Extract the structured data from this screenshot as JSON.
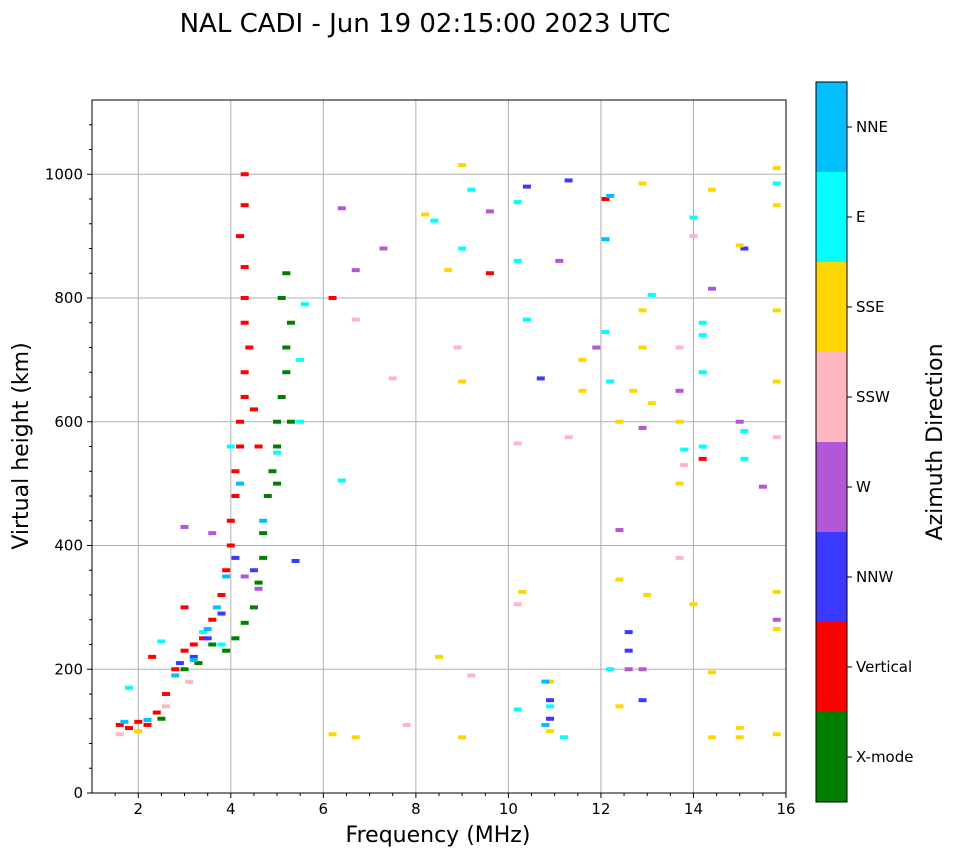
{
  "chart_data": {
    "type": "scatter",
    "title": "NAL CADI - Jun 19 02:15:00 2023 UTC",
    "xlabel": "Frequency (MHz)",
    "ylabel": "Virtual height (km)",
    "xlim": [
      1,
      16
    ],
    "ylim": [
      0,
      1120
    ],
    "grid": true,
    "x_ticks": [
      2,
      4,
      6,
      8,
      10,
      12,
      14,
      16
    ],
    "y_ticks": [
      0,
      200,
      400,
      600,
      800,
      1000
    ],
    "colorbar": {
      "label": "Azimuth Direction",
      "categories": [
        "X-mode",
        "Vertical",
        "NNW",
        "W",
        "SSW",
        "SSE",
        "E",
        "NNE"
      ],
      "colors": [
        "#008000",
        "#ff0000",
        "#3a3aff",
        "#b356d8",
        "#ffb6c1",
        "#ffd700",
        "#00ffff",
        "#00bfff"
      ]
    },
    "series": [
      {
        "name": "X-mode",
        "points": [
          [
            2.5,
            120
          ],
          [
            3.0,
            200
          ],
          [
            3.3,
            210
          ],
          [
            3.6,
            240
          ],
          [
            3.9,
            230
          ],
          [
            4.1,
            250
          ],
          [
            4.3,
            275
          ],
          [
            4.5,
            300
          ],
          [
            4.6,
            340
          ],
          [
            4.7,
            380
          ],
          [
            4.7,
            420
          ],
          [
            4.8,
            480
          ],
          [
            4.9,
            520
          ],
          [
            5.0,
            560
          ],
          [
            5.0,
            600
          ],
          [
            5.1,
            640
          ],
          [
            5.2,
            680
          ],
          [
            5.2,
            720
          ],
          [
            5.3,
            760
          ],
          [
            5.1,
            800
          ],
          [
            5.2,
            840
          ],
          [
            5.0,
            500
          ],
          [
            5.3,
            600
          ]
        ]
      },
      {
        "name": "Vertical",
        "points": [
          [
            1.6,
            110
          ],
          [
            1.8,
            105
          ],
          [
            2.0,
            115
          ],
          [
            2.2,
            110
          ],
          [
            2.4,
            130
          ],
          [
            2.6,
            160
          ],
          [
            2.8,
            200
          ],
          [
            3.0,
            230
          ],
          [
            3.2,
            240
          ],
          [
            3.4,
            250
          ],
          [
            3.6,
            280
          ],
          [
            3.8,
            320
          ],
          [
            3.9,
            360
          ],
          [
            4.0,
            400
          ],
          [
            4.0,
            440
          ],
          [
            4.1,
            480
          ],
          [
            4.1,
            520
          ],
          [
            4.2,
            560
          ],
          [
            4.2,
            600
          ],
          [
            4.3,
            640
          ],
          [
            4.3,
            680
          ],
          [
            4.4,
            720
          ],
          [
            4.3,
            760
          ],
          [
            4.3,
            800
          ],
          [
            4.3,
            850
          ],
          [
            4.2,
            900
          ],
          [
            4.3,
            950
          ],
          [
            4.3,
            1000
          ],
          [
            4.6,
            560
          ],
          [
            4.5,
            620
          ],
          [
            3.0,
            300
          ],
          [
            2.3,
            220
          ],
          [
            6.2,
            800
          ],
          [
            9.6,
            840
          ],
          [
            12.1,
            960
          ],
          [
            14.2,
            540
          ]
        ]
      },
      {
        "name": "NNW",
        "points": [
          [
            2.9,
            210
          ],
          [
            3.2,
            220
          ],
          [
            3.5,
            250
          ],
          [
            3.8,
            290
          ],
          [
            4.1,
            380
          ],
          [
            4.5,
            360
          ],
          [
            5.4,
            375
          ],
          [
            12.6,
            260
          ],
          [
            12.6,
            230
          ],
          [
            10.9,
            150
          ],
          [
            10.9,
            120
          ],
          [
            15.1,
            880
          ],
          [
            10.4,
            980
          ],
          [
            11.3,
            990
          ],
          [
            12.9,
            150
          ],
          [
            10.7,
            670
          ]
        ]
      },
      {
        "name": "W",
        "points": [
          [
            3.0,
            430
          ],
          [
            3.6,
            420
          ],
          [
            4.3,
            350
          ],
          [
            4.6,
            330
          ],
          [
            6.4,
            945
          ],
          [
            6.7,
            845
          ],
          [
            7.3,
            880
          ],
          [
            9.6,
            940
          ],
          [
            12.6,
            200
          ],
          [
            12.9,
            200
          ],
          [
            12.4,
            425
          ],
          [
            11.9,
            720
          ],
          [
            14.4,
            815
          ],
          [
            15.5,
            495
          ],
          [
            15.8,
            280
          ],
          [
            15.0,
            600
          ],
          [
            13.7,
            650
          ],
          [
            12.9,
            590
          ],
          [
            11.1,
            860
          ]
        ]
      },
      {
        "name": "SSW",
        "points": [
          [
            1.6,
            95
          ],
          [
            2.6,
            140
          ],
          [
            3.1,
            180
          ],
          [
            6.7,
            765
          ],
          [
            7.5,
            670
          ],
          [
            8.9,
            720
          ],
          [
            10.2,
            565
          ],
          [
            11.3,
            575
          ],
          [
            13.7,
            720
          ],
          [
            13.8,
            530
          ],
          [
            13.7,
            380
          ],
          [
            14.0,
            900
          ],
          [
            15.8,
            575
          ],
          [
            9.2,
            190
          ],
          [
            10.2,
            305
          ],
          [
            7.8,
            110
          ]
        ]
      },
      {
        "name": "SSE",
        "points": [
          [
            2.0,
            100
          ],
          [
            6.2,
            95
          ],
          [
            6.7,
            90
          ],
          [
            8.2,
            935
          ],
          [
            8.7,
            845
          ],
          [
            9.0,
            1015
          ],
          [
            9.0,
            665
          ],
          [
            9.0,
            90
          ],
          [
            10.3,
            325
          ],
          [
            10.9,
            180
          ],
          [
            10.9,
            100
          ],
          [
            11.6,
            700
          ],
          [
            11.6,
            650
          ],
          [
            12.4,
            600
          ],
          [
            12.4,
            345
          ],
          [
            12.4,
            140
          ],
          [
            12.7,
            650
          ],
          [
            12.9,
            780
          ],
          [
            12.9,
            720
          ],
          [
            13.0,
            320
          ],
          [
            12.9,
            985
          ],
          [
            13.1,
            630
          ],
          [
            13.7,
            600
          ],
          [
            13.7,
            500
          ],
          [
            14.0,
            305
          ],
          [
            14.4,
            975
          ],
          [
            14.4,
            195
          ],
          [
            14.4,
            90
          ],
          [
            15.0,
            885
          ],
          [
            15.0,
            105
          ],
          [
            15.0,
            90
          ],
          [
            15.8,
            1010
          ],
          [
            15.8,
            950
          ],
          [
            15.8,
            780
          ],
          [
            15.8,
            665
          ],
          [
            15.8,
            325
          ],
          [
            15.8,
            265
          ],
          [
            15.8,
            95
          ],
          [
            8.5,
            220
          ]
        ]
      },
      {
        "name": "E",
        "points": [
          [
            1.8,
            170
          ],
          [
            2.5,
            245
          ],
          [
            3.4,
            260
          ],
          [
            3.8,
            240
          ],
          [
            4.0,
            560
          ],
          [
            5.0,
            550
          ],
          [
            5.5,
            600
          ],
          [
            5.5,
            700
          ],
          [
            5.6,
            790
          ],
          [
            6.4,
            505
          ],
          [
            8.4,
            925
          ],
          [
            9.0,
            880
          ],
          [
            9.2,
            975
          ],
          [
            10.2,
            955
          ],
          [
            10.2,
            860
          ],
          [
            10.4,
            765
          ],
          [
            10.2,
            135
          ],
          [
            10.9,
            140
          ],
          [
            11.2,
            90
          ],
          [
            12.2,
            200
          ],
          [
            13.1,
            805
          ],
          [
            14.0,
            930
          ],
          [
            14.2,
            760
          ],
          [
            14.2,
            740
          ],
          [
            14.2,
            680
          ],
          [
            14.2,
            560
          ],
          [
            13.8,
            555
          ],
          [
            15.1,
            585
          ],
          [
            15.1,
            540
          ],
          [
            15.8,
            985
          ],
          [
            12.1,
            745
          ],
          [
            12.2,
            665
          ]
        ]
      },
      {
        "name": "NNE",
        "points": [
          [
            1.7,
            115
          ],
          [
            2.2,
            118
          ],
          [
            2.8,
            190
          ],
          [
            3.2,
            215
          ],
          [
            3.5,
            265
          ],
          [
            3.7,
            300
          ],
          [
            3.9,
            350
          ],
          [
            4.2,
            500
          ],
          [
            4.7,
            440
          ],
          [
            12.1,
            895
          ],
          [
            12.2,
            965
          ],
          [
            10.8,
            180
          ],
          [
            10.8,
            110
          ]
        ]
      }
    ]
  }
}
